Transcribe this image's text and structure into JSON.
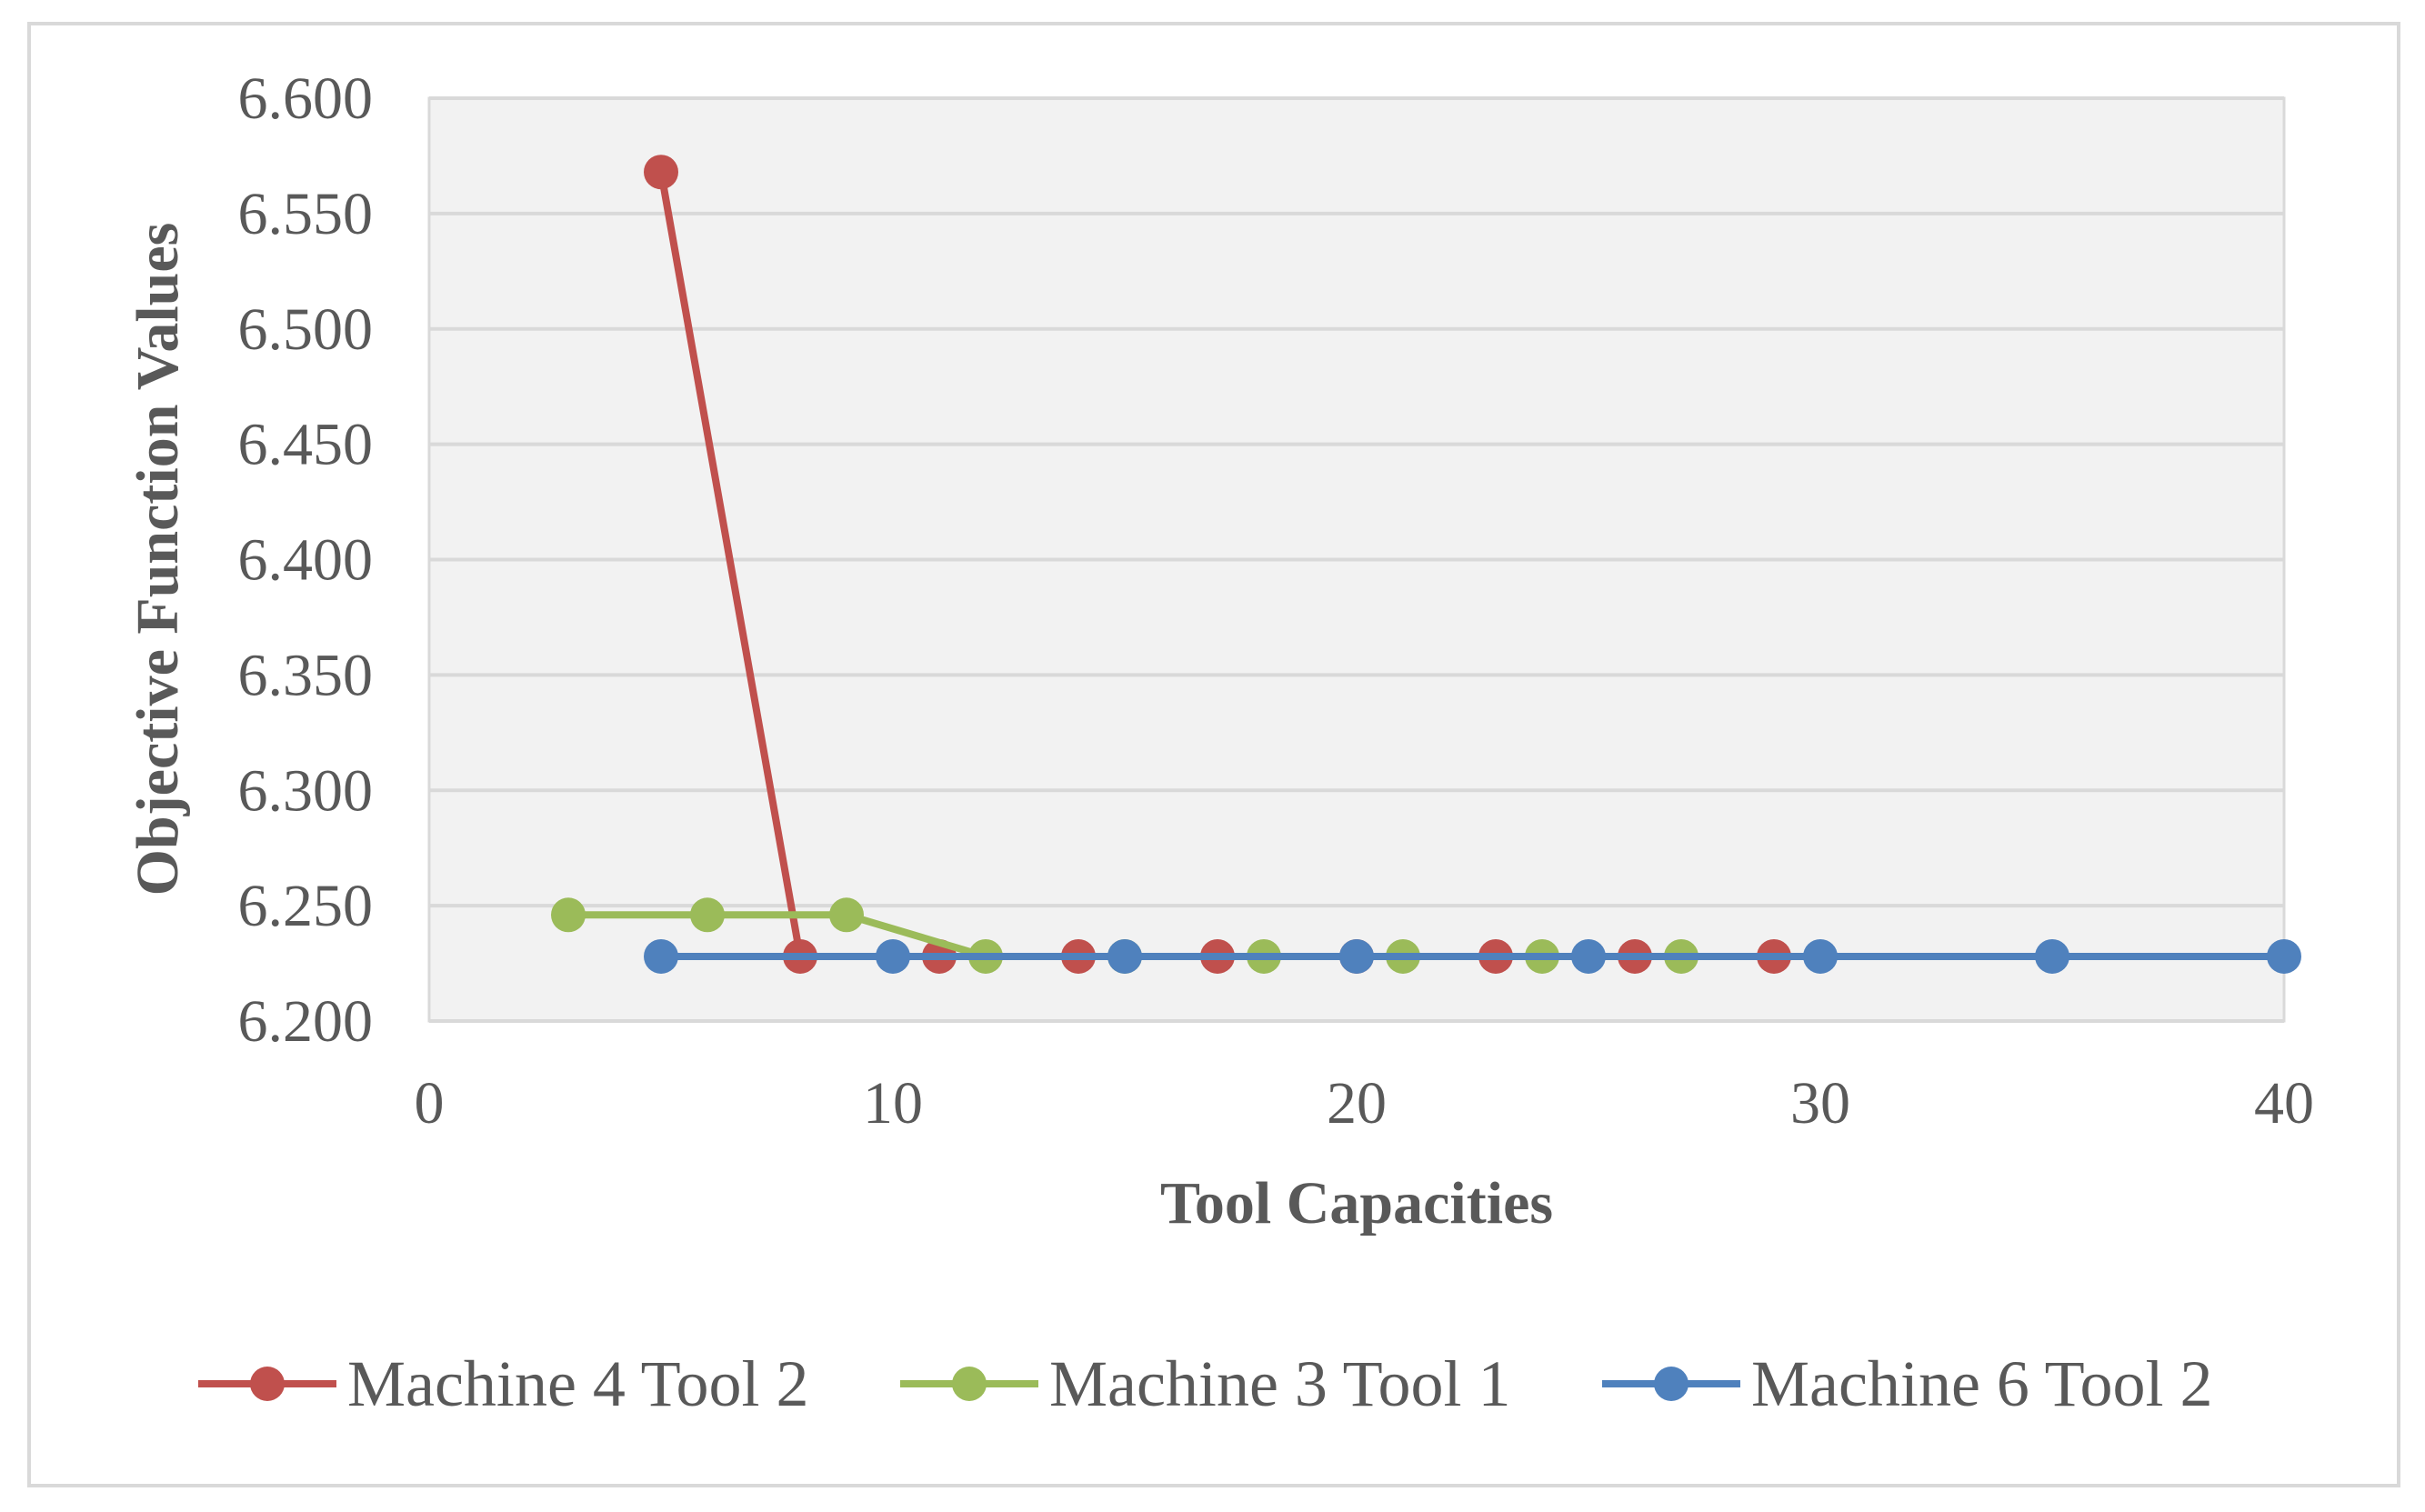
{
  "chart_data": {
    "type": "scatter",
    "title": "",
    "xlabel": "Tool Capacities",
    "ylabel": "Objective Function Values",
    "xlim": [
      0,
      40
    ],
    "ylim": [
      6.2,
      6.6
    ],
    "x_ticks": [
      "0",
      "10",
      "20",
      "30",
      "40"
    ],
    "y_ticks": [
      "6.200",
      "6.250",
      "6.300",
      "6.350",
      "6.400",
      "6.450",
      "6.500",
      "6.550",
      "6.600"
    ],
    "grid": true,
    "legend_position": "bottom",
    "series": [
      {
        "name": "Machine 4 Tool 2",
        "color": "#c0504d",
        "points": [
          [
            5,
            6.568
          ],
          [
            8,
            6.228
          ],
          [
            11,
            6.228
          ],
          [
            14,
            6.228
          ],
          [
            17,
            6.228
          ],
          [
            20,
            6.228
          ],
          [
            23,
            6.228
          ],
          [
            26,
            6.228
          ],
          [
            29,
            6.228
          ]
        ]
      },
      {
        "name": "Machine 3 Tool 1",
        "color": "#9bbb59",
        "points": [
          [
            3,
            6.246
          ],
          [
            6,
            6.246
          ],
          [
            9,
            6.246
          ],
          [
            12,
            6.228
          ],
          [
            15,
            6.228
          ],
          [
            18,
            6.228
          ],
          [
            21,
            6.228
          ],
          [
            24,
            6.228
          ],
          [
            27,
            6.228
          ]
        ]
      },
      {
        "name": "Machine 6 Tool 2",
        "color": "#4f81bd",
        "points": [
          [
            5,
            6.228
          ],
          [
            10,
            6.228
          ],
          [
            15,
            6.228
          ],
          [
            20,
            6.228
          ],
          [
            25,
            6.228
          ],
          [
            30,
            6.228
          ],
          [
            35,
            6.228
          ],
          [
            40,
            6.228
          ]
        ]
      }
    ]
  }
}
